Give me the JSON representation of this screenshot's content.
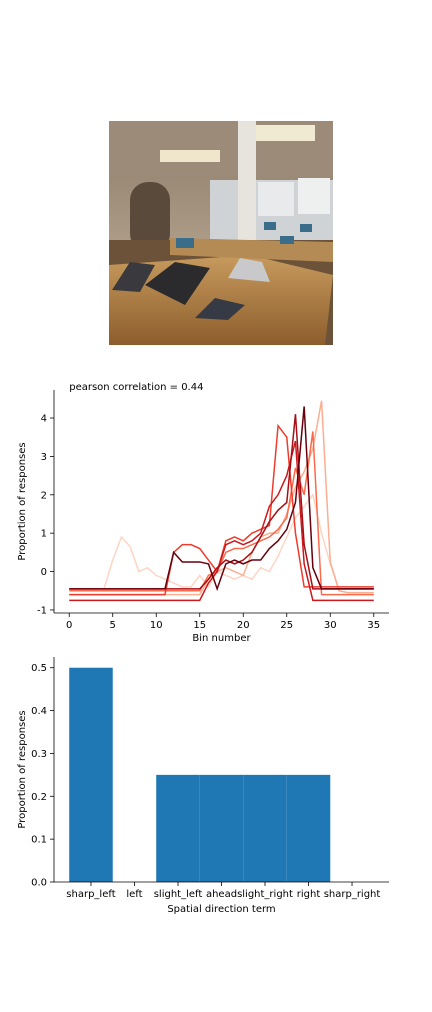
{
  "chart_data": [
    {
      "type": "line",
      "title": "pearson correlation = 0.44",
      "xlabel": "Bin number",
      "ylabel": "Proportion of responses",
      "x": [
        0,
        1,
        2,
        3,
        4,
        5,
        6,
        7,
        8,
        9,
        10,
        11,
        12,
        13,
        14,
        15,
        16,
        17,
        18,
        19,
        20,
        21,
        22,
        23,
        24,
        25,
        26,
        27,
        28,
        29,
        30,
        31,
        32,
        33,
        34,
        35
      ],
      "xlim": [
        -1.75,
        36.75
      ],
      "xticks": [
        0,
        5,
        10,
        15,
        20,
        25,
        30,
        35
      ],
      "ylim": [
        -1.08,
        4.73
      ],
      "yticks": [
        -1,
        0,
        1,
        2,
        3,
        4
      ],
      "series": [
        {
          "color": "#fdd5c4",
          "values": [
            -0.45,
            -0.45,
            -0.45,
            -0.45,
            -0.45,
            0.3,
            0.9,
            0.65,
            0,
            0.1,
            -0.1,
            -0.2,
            -0.3,
            -0.4,
            -0.4,
            -0.1,
            -0.4,
            0,
            -0.1,
            -0.2,
            -0.1,
            -0.2,
            0.1,
            0,
            0.4,
            0.9,
            1.4,
            1.7,
            2.0,
            1.0,
            0.2,
            -0.45,
            -0.45,
            -0.45,
            -0.45,
            -0.45
          ]
        },
        {
          "color": "#fcae91",
          "values": [
            -0.6,
            -0.6,
            -0.6,
            -0.6,
            -0.6,
            -0.6,
            -0.6,
            -0.6,
            -0.6,
            -0.6,
            -0.6,
            -0.6,
            -0.6,
            -0.6,
            -0.6,
            -0.6,
            -0.2,
            0,
            0.1,
            0,
            -0.1,
            0.5,
            0.9,
            1.0,
            1.0,
            1.5,
            2.2,
            2.6,
            3.2,
            4.45,
            0.25,
            -0.5,
            -0.55,
            -0.55,
            -0.55,
            -0.55
          ]
        },
        {
          "color": "#fb6a4a",
          "values": [
            -0.5,
            -0.5,
            -0.5,
            -0.5,
            -0.5,
            -0.5,
            -0.5,
            -0.5,
            -0.5,
            -0.5,
            -0.5,
            -0.5,
            -0.5,
            -0.5,
            -0.5,
            -0.5,
            -0.1,
            0,
            0.5,
            0.6,
            0.6,
            0.7,
            0.8,
            0.9,
            1.1,
            1.4,
            2.7,
            2.0,
            3.65,
            -0.6,
            -0.6,
            -0.6,
            -0.6,
            -0.6,
            -0.6,
            -0.6
          ]
        },
        {
          "color": "#ef3b2c",
          "values": [
            -0.6,
            -0.6,
            -0.6,
            -0.6,
            -0.6,
            -0.6,
            -0.6,
            -0.6,
            -0.6,
            -0.6,
            -0.6,
            -0.6,
            0.5,
            0.7,
            0.7,
            0.6,
            0.3,
            0,
            0.8,
            0.9,
            0.8,
            1.0,
            1.1,
            1.2,
            3.8,
            3.5,
            1.0,
            -0.4,
            -0.4,
            -0.4,
            -0.4,
            -0.4,
            -0.4,
            -0.4,
            -0.4,
            -0.4
          ]
        },
        {
          "color": "#cb181d",
          "values": [
            -0.75,
            -0.75,
            -0.75,
            -0.75,
            -0.75,
            -0.75,
            -0.75,
            -0.75,
            -0.75,
            -0.75,
            -0.75,
            -0.75,
            -0.75,
            -0.75,
            -0.75,
            -0.75,
            -0.3,
            0,
            0.7,
            0.8,
            0.7,
            0.8,
            1.0,
            1.7,
            2.0,
            2.5,
            3.4,
            0.2,
            -0.75,
            -0.75,
            -0.75,
            -0.75,
            -0.75,
            -0.75,
            -0.75,
            -0.75
          ]
        },
        {
          "color": "#a50f15",
          "values": [
            -0.45,
            -0.45,
            -0.45,
            -0.45,
            -0.45,
            -0.45,
            -0.45,
            -0.45,
            -0.45,
            -0.45,
            -0.45,
            -0.45,
            -0.45,
            -0.45,
            -0.45,
            -0.45,
            -0.2,
            0.1,
            0.3,
            0.2,
            0.3,
            0.5,
            0.9,
            1.3,
            1.6,
            1.8,
            4.1,
            0.7,
            -0.45,
            -0.45,
            -0.45,
            -0.45,
            -0.45,
            -0.45,
            -0.45,
            -0.45
          ]
        },
        {
          "color": "#67000d",
          "values": [
            -0.45,
            -0.45,
            -0.45,
            -0.45,
            -0.45,
            -0.45,
            -0.45,
            -0.45,
            -0.45,
            -0.45,
            -0.45,
            -0.45,
            0.5,
            0.25,
            0.25,
            0.25,
            0.2,
            -0.45,
            0.2,
            0.3,
            0.2,
            0.3,
            0.3,
            0.6,
            0.8,
            1.1,
            1.8,
            4.3,
            0.1,
            -0.45,
            -0.45,
            -0.45,
            -0.45,
            -0.45,
            -0.45,
            -0.45
          ]
        }
      ]
    },
    {
      "type": "bar",
      "xlabel": "Spatial direction term",
      "ylabel": "Proportion of responses",
      "categories": [
        "sharp_left",
        "left",
        "slight_left",
        "ahead",
        "slight_right",
        "right",
        "sharp_right"
      ],
      "values": [
        0.5,
        0,
        0.25,
        0.25,
        0.25,
        0.25,
        0
      ],
      "color": "#1f77b4",
      "ylim": [
        0,
        0.525
      ],
      "yticks": [
        {
          "value": 0,
          "label": "0.0"
        },
        0.1,
        0.2,
        0.3,
        0.4,
        0.5
      ]
    }
  ]
}
